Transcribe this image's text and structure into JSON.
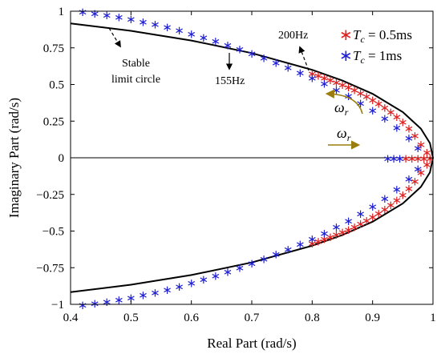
{
  "chart_data": {
    "type": "scatter",
    "xlabel": "Real Part (rad/s)",
    "ylabel": "Imaginary  Part (rad/s)",
    "xlim": [
      0.4,
      1.0
    ],
    "ylim": [
      -1.0,
      1.0
    ],
    "xticks": [
      "0.4",
      "0.5",
      "0.6",
      "0.7",
      "0.8",
      "0.9",
      "1"
    ],
    "yticks": [
      "1",
      "0.75",
      "0.5",
      "0.25",
      "0",
      "−0.25",
      "−0.5",
      "−0.75",
      "−1"
    ],
    "grid": false,
    "legend_position": "top-right",
    "legend": [
      {
        "prefix": "T",
        "subscript": "c",
        "suffix": " = 0.5ms",
        "color": "#e02020",
        "marker": "*"
      },
      {
        "prefix": "T",
        "subscript": "c",
        "suffix": " = 1ms",
        "color": "#1f1fd6",
        "marker": "*"
      }
    ],
    "curve": {
      "name": "Stable limit circle",
      "color": "#000000",
      "points": [
        [
          0.4,
          0.917
        ],
        [
          0.5,
          0.866
        ],
        [
          0.6,
          0.8
        ],
        [
          0.7,
          0.714
        ],
        [
          0.8,
          0.6
        ],
        [
          0.85,
          0.527
        ],
        [
          0.9,
          0.436
        ],
        [
          0.95,
          0.312
        ],
        [
          0.98,
          0.199
        ],
        [
          0.995,
          0.1
        ],
        [
          1.0,
          0.0
        ],
        [
          0.995,
          -0.1
        ],
        [
          0.98,
          -0.199
        ],
        [
          0.95,
          -0.312
        ],
        [
          0.9,
          -0.436
        ],
        [
          0.85,
          -0.527
        ],
        [
          0.8,
          -0.6
        ],
        [
          0.7,
          -0.714
        ],
        [
          0.6,
          -0.8
        ],
        [
          0.5,
          -0.866
        ],
        [
          0.4,
          -0.917
        ]
      ]
    },
    "series": [
      {
        "color": "#e02020",
        "points": [
          [
            0.8,
            0.58
          ],
          [
            0.81,
            0.565
          ],
          [
            0.82,
            0.55
          ],
          [
            0.83,
            0.535
          ],
          [
            0.84,
            0.52
          ],
          [
            0.85,
            0.503
          ],
          [
            0.86,
            0.485
          ],
          [
            0.87,
            0.466
          ],
          [
            0.88,
            0.445
          ],
          [
            0.89,
            0.423
          ],
          [
            0.9,
            0.4
          ],
          [
            0.91,
            0.375
          ],
          [
            0.92,
            0.348
          ],
          [
            0.93,
            0.318
          ],
          [
            0.94,
            0.285
          ],
          [
            0.95,
            0.248
          ],
          [
            0.96,
            0.205
          ],
          [
            0.97,
            0.155
          ],
          [
            0.98,
            0.095
          ],
          [
            0.99,
            0.04
          ],
          [
            0.955,
            0.0
          ],
          [
            0.965,
            0.0
          ],
          [
            0.975,
            0.0
          ],
          [
            0.985,
            0.0
          ],
          [
            0.995,
            0.0
          ],
          [
            0.99,
            -0.04
          ],
          [
            0.98,
            -0.095
          ],
          [
            0.97,
            -0.155
          ],
          [
            0.96,
            -0.205
          ],
          [
            0.95,
            -0.248
          ],
          [
            0.94,
            -0.285
          ],
          [
            0.93,
            -0.318
          ],
          [
            0.92,
            -0.348
          ],
          [
            0.91,
            -0.375
          ],
          [
            0.9,
            -0.4
          ],
          [
            0.89,
            -0.423
          ],
          [
            0.88,
            -0.445
          ],
          [
            0.87,
            -0.466
          ],
          [
            0.86,
            -0.485
          ],
          [
            0.85,
            -0.503
          ],
          [
            0.84,
            -0.52
          ],
          [
            0.83,
            -0.535
          ],
          [
            0.82,
            -0.55
          ],
          [
            0.81,
            -0.565
          ],
          [
            0.8,
            -0.58
          ]
        ]
      },
      {
        "color": "#1f1fd6",
        "points": [
          [
            0.42,
            1.0
          ],
          [
            0.44,
            0.99
          ],
          [
            0.46,
            0.978
          ],
          [
            0.48,
            0.965
          ],
          [
            0.5,
            0.95
          ],
          [
            0.52,
            0.933
          ],
          [
            0.54,
            0.915
          ],
          [
            0.56,
            0.895
          ],
          [
            0.58,
            0.873
          ],
          [
            0.6,
            0.85
          ],
          [
            0.62,
            0.825
          ],
          [
            0.64,
            0.8
          ],
          [
            0.66,
            0.773
          ],
          [
            0.68,
            0.745
          ],
          [
            0.7,
            0.715
          ],
          [
            0.72,
            0.685
          ],
          [
            0.74,
            0.653
          ],
          [
            0.76,
            0.62
          ],
          [
            0.78,
            0.585
          ],
          [
            0.8,
            0.548
          ],
          [
            0.82,
            0.51
          ],
          [
            0.84,
            0.468
          ],
          [
            0.86,
            0.425
          ],
          [
            0.88,
            0.378
          ],
          [
            0.9,
            0.328
          ],
          [
            0.92,
            0.272
          ],
          [
            0.94,
            0.21
          ],
          [
            0.96,
            0.14
          ],
          [
            0.975,
            0.07
          ],
          [
            0.925,
            0.0
          ],
          [
            0.935,
            0.0
          ],
          [
            0.945,
            0.0
          ],
          [
            0.975,
            -0.07
          ],
          [
            0.96,
            -0.14
          ],
          [
            0.94,
            -0.21
          ],
          [
            0.92,
            -0.272
          ],
          [
            0.9,
            -0.328
          ],
          [
            0.88,
            -0.378
          ],
          [
            0.86,
            -0.425
          ],
          [
            0.84,
            -0.468
          ],
          [
            0.82,
            -0.51
          ],
          [
            0.8,
            -0.548
          ],
          [
            0.78,
            -0.585
          ],
          [
            0.76,
            -0.62
          ],
          [
            0.74,
            -0.653
          ],
          [
            0.72,
            -0.685
          ],
          [
            0.7,
            -0.715
          ],
          [
            0.68,
            -0.745
          ],
          [
            0.66,
            -0.773
          ],
          [
            0.64,
            -0.8
          ],
          [
            0.62,
            -0.825
          ],
          [
            0.6,
            -0.85
          ],
          [
            0.58,
            -0.873
          ],
          [
            0.56,
            -0.895
          ],
          [
            0.54,
            -0.915
          ],
          [
            0.52,
            -0.933
          ],
          [
            0.5,
            -0.95
          ],
          [
            0.48,
            -0.965
          ],
          [
            0.46,
            -0.978
          ],
          [
            0.44,
            -0.99
          ],
          [
            0.42,
            -1.0
          ]
        ]
      }
    ],
    "annotations": {
      "stable_line1": "Stable",
      "stable_line2": "limit circle",
      "freq_155": "155Hz",
      "freq_200": "200Hz",
      "omega_symbol": "ω",
      "omega_sub": "r"
    }
  }
}
